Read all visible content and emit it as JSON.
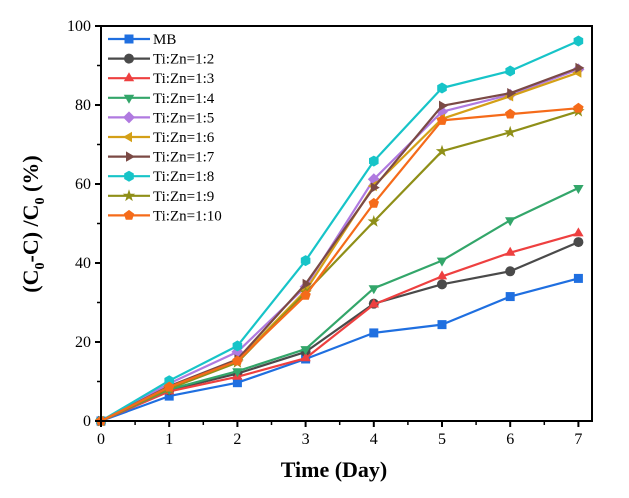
{
  "chart_data": {
    "type": "line",
    "title": "",
    "xlabel": "Time (Day)",
    "ylabel_parts": [
      "(C",
      "0",
      "-C) /C",
      "0",
      " (%)"
    ],
    "ylabel": "(C0-C) /C0 (%)",
    "x": [
      0,
      1,
      2,
      3,
      4,
      5,
      6,
      7
    ],
    "xlim": [
      0,
      7.2
    ],
    "ylim": [
      0,
      100
    ],
    "xticks": [
      0,
      1,
      2,
      3,
      4,
      5,
      6,
      7
    ],
    "yticks": [
      0,
      20,
      40,
      60,
      80,
      100
    ],
    "grid": false,
    "legend_position": "top-left",
    "series": [
      {
        "name": "MB",
        "color": "#1f6fe0",
        "marker": "square",
        "values": [
          0,
          6.3,
          9.7,
          15.7,
          22.3,
          24.4,
          31.5,
          36.1
        ]
      },
      {
        "name": "Ti:Zn=1:2",
        "color": "#4a4a4a",
        "marker": "circle",
        "values": [
          0,
          7.8,
          12.0,
          17.5,
          29.7,
          34.6,
          37.9,
          45.3
        ]
      },
      {
        "name": "Ti:Zn=1:3",
        "color": "#ee4040",
        "marker": "triangle-up",
        "values": [
          0,
          7.5,
          11.2,
          15.9,
          29.5,
          36.6,
          42.6,
          47.5
        ]
      },
      {
        "name": "Ti:Zn=1:4",
        "color": "#33a66a",
        "marker": "triangle-down",
        "values": [
          0,
          8.0,
          12.6,
          18.2,
          33.6,
          40.6,
          50.8,
          59.0
        ]
      },
      {
        "name": "Ti:Zn=1:5",
        "color": "#b07ae0",
        "marker": "diamond",
        "values": [
          0,
          9.5,
          17.5,
          34.0,
          61.2,
          78.3,
          82.6,
          89.0
        ]
      },
      {
        "name": "Ti:Zn=1:6",
        "color": "#d4a017",
        "marker": "triangle-left",
        "values": [
          0,
          8.5,
          15.2,
          33.0,
          59.5,
          76.5,
          82.2,
          88.2
        ]
      },
      {
        "name": "Ti:Zn=1:7",
        "color": "#7b4a45",
        "marker": "triangle-right",
        "values": [
          0,
          8.8,
          15.6,
          34.7,
          59.1,
          79.8,
          83.0,
          89.4
        ]
      },
      {
        "name": "Ti:Zn=1:8",
        "color": "#17c4c8",
        "marker": "hexagon",
        "values": [
          0,
          10.2,
          19.0,
          40.6,
          65.8,
          84.3,
          88.6,
          96.2
        ]
      },
      {
        "name": "Ti:Zn=1:9",
        "color": "#8f8f18",
        "marker": "star",
        "values": [
          0,
          8.2,
          14.8,
          32.5,
          50.5,
          68.3,
          73.1,
          78.4
        ]
      },
      {
        "name": "Ti:Zn=1:10",
        "color": "#f56b1a",
        "marker": "pentagon",
        "values": [
          0,
          8.6,
          15.2,
          31.8,
          55.1,
          76.1,
          77.7,
          79.2
        ]
      }
    ]
  }
}
